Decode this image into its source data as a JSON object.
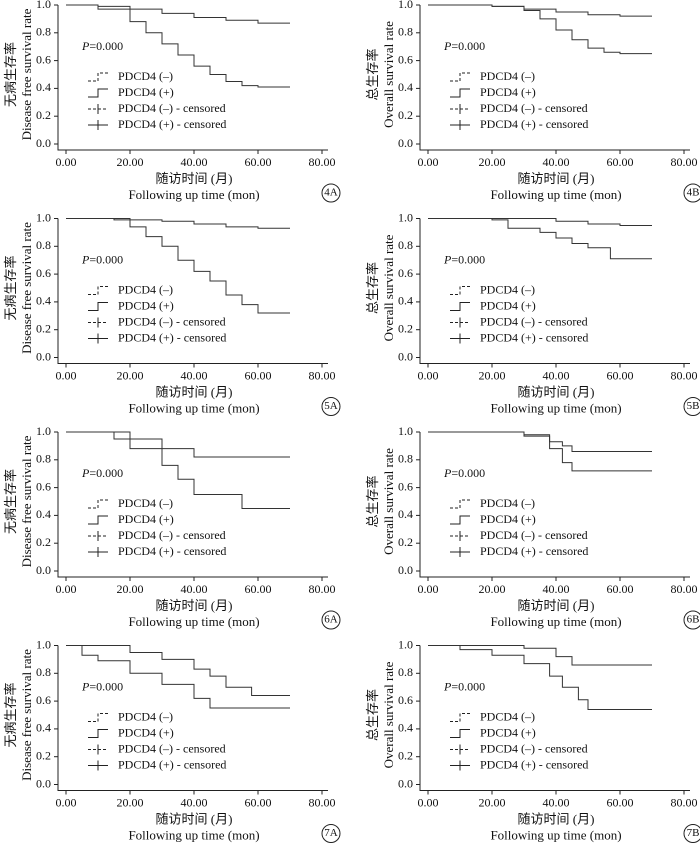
{
  "chart_data": [
    {
      "type": "line",
      "step": true,
      "panel": "4A",
      "y_label_cn": "无病生存率",
      "y_label_en": "Disease free survival rate",
      "x_label_cn": "随访时间 (月)",
      "x_label_en": "Following up time (mon)",
      "p_symbol": "P",
      "p_text": "=0.000",
      "xlim": [
        0,
        80
      ],
      "ylim": [
        0,
        1
      ],
      "xticks": [
        {
          "value": 0,
          "label": "0.00"
        },
        {
          "value": 20,
          "label": "20.00"
        },
        {
          "value": 40,
          "label": "40.00"
        },
        {
          "value": 60,
          "label": "60.00"
        },
        {
          "value": 80,
          "label": "80.00"
        }
      ],
      "yticks": [
        {
          "value": 0,
          "label": "0.0"
        },
        {
          "value": 0.2,
          "label": "0.2"
        },
        {
          "value": 0.4,
          "label": "0.4"
        },
        {
          "value": 0.6,
          "label": "0.6"
        },
        {
          "value": 0.8,
          "label": "0.8"
        },
        {
          "value": 1,
          "label": "1.0"
        }
      ],
      "series": [
        {
          "name": "PDCD4 (–)",
          "censored_name": "PDCD4 (–) - censored",
          "style": "dashed",
          "color": "#333",
          "x": [
            0,
            10,
            20,
            30,
            40,
            50,
            60,
            70
          ],
          "values": [
            1,
            0.99,
            0.97,
            0.94,
            0.91,
            0.89,
            0.87,
            0.87
          ]
        },
        {
          "name": "PDCD4 (+)",
          "censored_name": "PDCD4 (+) - censored",
          "style": "solid",
          "color": "#333",
          "x": [
            0,
            10,
            20,
            25,
            30,
            35,
            40,
            45,
            50,
            55,
            60,
            70
          ],
          "values": [
            1,
            0.97,
            0.88,
            0.8,
            0.72,
            0.64,
            0.56,
            0.5,
            0.45,
            0.42,
            0.41,
            0.41
          ]
        }
      ]
    },
    {
      "type": "line",
      "step": true,
      "panel": "4B",
      "y_label_cn": "总生存率",
      "y_label_en": "Overall survival rate",
      "x_label_cn": "随访时间 (月)",
      "x_label_en": "Following up time (mon)",
      "p_symbol": "P",
      "p_text": "=0.000",
      "xlim": [
        0,
        80
      ],
      "ylim": [
        0,
        1
      ],
      "xticks": [
        {
          "value": 0,
          "label": "0.00"
        },
        {
          "value": 20,
          "label": "20.00"
        },
        {
          "value": 40,
          "label": "40.00"
        },
        {
          "value": 60,
          "label": "60.00"
        },
        {
          "value": 80,
          "label": "80.00"
        }
      ],
      "yticks": [
        {
          "value": 0,
          "label": "0.0"
        },
        {
          "value": 0.2,
          "label": "0.2"
        },
        {
          "value": 0.4,
          "label": "0.4"
        },
        {
          "value": 0.6,
          "label": "0.6"
        },
        {
          "value": 0.8,
          "label": "0.8"
        },
        {
          "value": 1,
          "label": "1.0"
        }
      ],
      "series": [
        {
          "name": "PDCD4 (–)",
          "censored_name": "PDCD4 (–) - censored",
          "style": "dashed",
          "color": "#333",
          "x": [
            0,
            20,
            30,
            40,
            50,
            60,
            70
          ],
          "values": [
            1,
            0.99,
            0.97,
            0.95,
            0.93,
            0.92,
            0.92
          ]
        },
        {
          "name": "PDCD4 (+)",
          "censored_name": "PDCD4 (+) - censored",
          "style": "solid",
          "color": "#333",
          "x": [
            0,
            20,
            30,
            35,
            40,
            45,
            50,
            55,
            60,
            70
          ],
          "values": [
            1,
            0.99,
            0.96,
            0.9,
            0.82,
            0.75,
            0.69,
            0.66,
            0.65,
            0.65
          ]
        }
      ]
    },
    {
      "type": "line",
      "step": true,
      "panel": "5A",
      "y_label_cn": "无病生存率",
      "y_label_en": "Disease free survival rate",
      "x_label_cn": "随访时间 (月)",
      "x_label_en": "Following up time (mon)",
      "p_symbol": "P",
      "p_text": "=0.000",
      "xlim": [
        0,
        80
      ],
      "ylim": [
        0,
        1
      ],
      "xticks": [
        {
          "value": 0,
          "label": "0.00"
        },
        {
          "value": 20,
          "label": "20.00"
        },
        {
          "value": 40,
          "label": "40.00"
        },
        {
          "value": 60,
          "label": "60.00"
        },
        {
          "value": 80,
          "label": "80.00"
        }
      ],
      "yticks": [
        {
          "value": 0,
          "label": "0.0"
        },
        {
          "value": 0.2,
          "label": "0.2"
        },
        {
          "value": 0.4,
          "label": "0.4"
        },
        {
          "value": 0.6,
          "label": "0.6"
        },
        {
          "value": 0.8,
          "label": "0.8"
        },
        {
          "value": 1,
          "label": "1.0"
        }
      ],
      "series": [
        {
          "name": "PDCD4 (–)",
          "censored_name": "PDCD4 (–) - censored",
          "style": "dashed",
          "color": "#333",
          "x": [
            0,
            20,
            30,
            40,
            50,
            60,
            70
          ],
          "values": [
            1,
            0.99,
            0.98,
            0.96,
            0.94,
            0.93,
            0.93
          ]
        },
        {
          "name": "PDCD4 (+)",
          "censored_name": "PDCD4 (+) - censored",
          "style": "solid",
          "color": "#333",
          "x": [
            0,
            15,
            20,
            25,
            30,
            35,
            40,
            45,
            50,
            55,
            60,
            70
          ],
          "values": [
            1,
            0.99,
            0.94,
            0.87,
            0.8,
            0.7,
            0.62,
            0.55,
            0.45,
            0.38,
            0.32,
            0.32
          ]
        }
      ]
    },
    {
      "type": "line",
      "step": true,
      "panel": "5B",
      "y_label_cn": "总生存率",
      "y_label_en": "Overall survival rate",
      "x_label_cn": "随访时间 (月)",
      "x_label_en": "Following up time (mon)",
      "p_symbol": "P",
      "p_text": "=0.000",
      "xlim": [
        0,
        80
      ],
      "ylim": [
        0,
        1
      ],
      "xticks": [
        {
          "value": 0,
          "label": "0.00"
        },
        {
          "value": 20,
          "label": "20.00"
        },
        {
          "value": 40,
          "label": "40.00"
        },
        {
          "value": 60,
          "label": "60.00"
        },
        {
          "value": 80,
          "label": "80.00"
        }
      ],
      "yticks": [
        {
          "value": 0,
          "label": "0.0"
        },
        {
          "value": 0.2,
          "label": "0.2"
        },
        {
          "value": 0.4,
          "label": "0.4"
        },
        {
          "value": 0.6,
          "label": "0.6"
        },
        {
          "value": 0.8,
          "label": "0.8"
        },
        {
          "value": 1,
          "label": "1.0"
        }
      ],
      "series": [
        {
          "name": "PDCD4 (–)",
          "censored_name": "PDCD4 (–) - censored",
          "style": "dashed",
          "color": "#333",
          "x": [
            0,
            30,
            40,
            50,
            60,
            70
          ],
          "values": [
            1,
            1,
            0.98,
            0.96,
            0.95,
            0.95
          ]
        },
        {
          "name": "PDCD4 (+)",
          "censored_name": "PDCD4 (+) - censored",
          "style": "solid",
          "color": "#333",
          "x": [
            0,
            20,
            25,
            35,
            40,
            45,
            50,
            57,
            70
          ],
          "values": [
            1,
            0.99,
            0.93,
            0.9,
            0.86,
            0.82,
            0.79,
            0.71,
            0.71
          ]
        }
      ]
    },
    {
      "type": "line",
      "step": true,
      "panel": "6A",
      "y_label_cn": "无病生存率",
      "y_label_en": "Disease free survival rate",
      "x_label_cn": "随访时间 (月)",
      "x_label_en": "Following up time (mon)",
      "p_symbol": "P",
      "p_text": "=0.000",
      "xlim": [
        0,
        80
      ],
      "ylim": [
        0,
        1
      ],
      "xticks": [
        {
          "value": 0,
          "label": "0.00"
        },
        {
          "value": 20,
          "label": "20.00"
        },
        {
          "value": 40,
          "label": "40.00"
        },
        {
          "value": 60,
          "label": "60.00"
        },
        {
          "value": 80,
          "label": "80.00"
        }
      ],
      "yticks": [
        {
          "value": 0,
          "label": "0.0"
        },
        {
          "value": 0.2,
          "label": "0.2"
        },
        {
          "value": 0.4,
          "label": "0.4"
        },
        {
          "value": 0.6,
          "label": "0.6"
        },
        {
          "value": 0.8,
          "label": "0.8"
        },
        {
          "value": 1,
          "label": "1.0"
        }
      ],
      "series": [
        {
          "name": "PDCD4 (–)",
          "censored_name": "PDCD4 (–) - censored",
          "style": "dashed",
          "color": "#333",
          "x": [
            0,
            15,
            20,
            30,
            40,
            70
          ],
          "values": [
            1,
            1,
            0.95,
            0.88,
            0.82,
            0.82
          ]
        },
        {
          "name": "PDCD4 (+)",
          "censored_name": "PDCD4 (+) - censored",
          "style": "solid",
          "color": "#333",
          "x": [
            0,
            15,
            20,
            30,
            35,
            40,
            55,
            70
          ],
          "values": [
            1,
            0.95,
            0.88,
            0.76,
            0.66,
            0.55,
            0.45,
            0.45
          ]
        }
      ]
    },
    {
      "type": "line",
      "step": true,
      "panel": "6B",
      "y_label_cn": "总生存率",
      "y_label_en": "Overall survival rate",
      "x_label_cn": "随访时间 (月)",
      "x_label_en": "Following up time (mon)",
      "p_symbol": "P",
      "p_text": "=0.000",
      "xlim": [
        0,
        80
      ],
      "ylim": [
        0,
        1
      ],
      "xticks": [
        {
          "value": 0,
          "label": "0.00"
        },
        {
          "value": 20,
          "label": "20.00"
        },
        {
          "value": 40,
          "label": "40.00"
        },
        {
          "value": 60,
          "label": "60.00"
        },
        {
          "value": 80,
          "label": "80.00"
        }
      ],
      "yticks": [
        {
          "value": 0,
          "label": "0.0"
        },
        {
          "value": 0.2,
          "label": "0.2"
        },
        {
          "value": 0.4,
          "label": "0.4"
        },
        {
          "value": 0.6,
          "label": "0.6"
        },
        {
          "value": 0.8,
          "label": "0.8"
        },
        {
          "value": 1,
          "label": "1.0"
        }
      ],
      "series": [
        {
          "name": "PDCD4 (–)",
          "censored_name": "PDCD4 (–) - censored",
          "style": "dashed",
          "color": "#333",
          "x": [
            0,
            30,
            38,
            42,
            45,
            70
          ],
          "values": [
            1,
            0.98,
            0.93,
            0.9,
            0.86,
            0.86
          ]
        },
        {
          "name": "PDCD4 (+)",
          "censored_name": "PDCD4 (+) - censored",
          "style": "solid",
          "color": "#333",
          "x": [
            0,
            30,
            38,
            42,
            45,
            70
          ],
          "values": [
            1,
            0.97,
            0.88,
            0.78,
            0.72,
            0.72
          ]
        }
      ]
    },
    {
      "type": "line",
      "step": true,
      "panel": "7A",
      "y_label_cn": "无病生存率",
      "y_label_en": "Disease free survival rate",
      "x_label_cn": "随访时间 (月)",
      "x_label_en": "Following up time (mon)",
      "p_symbol": "P",
      "p_text": "=0.000",
      "xlim": [
        0,
        80
      ],
      "ylim": [
        0,
        1
      ],
      "xticks": [
        {
          "value": 0,
          "label": "0.00"
        },
        {
          "value": 20,
          "label": "20.00"
        },
        {
          "value": 40,
          "label": "40.00"
        },
        {
          "value": 60,
          "label": "60.00"
        },
        {
          "value": 80,
          "label": "80.00"
        }
      ],
      "yticks": [
        {
          "value": 0,
          "label": "0.0"
        },
        {
          "value": 0.2,
          "label": "0.2"
        },
        {
          "value": 0.4,
          "label": "0.4"
        },
        {
          "value": 0.6,
          "label": "0.6"
        },
        {
          "value": 0.8,
          "label": "0.8"
        },
        {
          "value": 1,
          "label": "1.0"
        }
      ],
      "series": [
        {
          "name": "PDCD4 (–)",
          "censored_name": "PDCD4 (–) - censored",
          "style": "dashed",
          "color": "#333",
          "x": [
            0,
            15,
            20,
            30,
            40,
            45,
            50,
            58,
            70
          ],
          "values": [
            1,
            1,
            0.95,
            0.9,
            0.83,
            0.78,
            0.7,
            0.64,
            0.64
          ]
        },
        {
          "name": "PDCD4 (+)",
          "censored_name": "PDCD4 (+) - censored",
          "style": "solid",
          "color": "#333",
          "x": [
            0,
            5,
            10,
            20,
            30,
            40,
            45,
            70
          ],
          "values": [
            1,
            0.93,
            0.89,
            0.8,
            0.72,
            0.62,
            0.55,
            0.55
          ]
        }
      ]
    },
    {
      "type": "line",
      "step": true,
      "panel": "7B",
      "y_label_cn": "总生存率",
      "y_label_en": "Overall survival rate",
      "x_label_cn": "随访时间 (月)",
      "x_label_en": "Following up time (mon)",
      "p_symbol": "P",
      "p_text": "=0.000",
      "xlim": [
        0,
        80
      ],
      "ylim": [
        0,
        1
      ],
      "xticks": [
        {
          "value": 0,
          "label": "0.00"
        },
        {
          "value": 20,
          "label": "20.00"
        },
        {
          "value": 40,
          "label": "40.00"
        },
        {
          "value": 60,
          "label": "60.00"
        },
        {
          "value": 80,
          "label": "80.00"
        }
      ],
      "yticks": [
        {
          "value": 0,
          "label": "0.0"
        },
        {
          "value": 0.2,
          "label": "0.2"
        },
        {
          "value": 0.4,
          "label": "0.4"
        },
        {
          "value": 0.6,
          "label": "0.6"
        },
        {
          "value": 0.8,
          "label": "0.8"
        },
        {
          "value": 1,
          "label": "1.0"
        }
      ],
      "series": [
        {
          "name": "PDCD4 (–)",
          "censored_name": "PDCD4 (–) - censored",
          "style": "dashed",
          "color": "#333",
          "x": [
            0,
            20,
            30,
            40,
            45,
            70
          ],
          "values": [
            1,
            1,
            0.98,
            0.92,
            0.86,
            0.86
          ]
        },
        {
          "name": "PDCD4 (+)",
          "censored_name": "PDCD4 (+) - censored",
          "style": "solid",
          "color": "#333",
          "x": [
            0,
            10,
            20,
            30,
            38,
            42,
            47,
            50,
            70
          ],
          "values": [
            1,
            0.97,
            0.93,
            0.87,
            0.78,
            0.7,
            0.61,
            0.54,
            0.54
          ]
        }
      ]
    }
  ]
}
